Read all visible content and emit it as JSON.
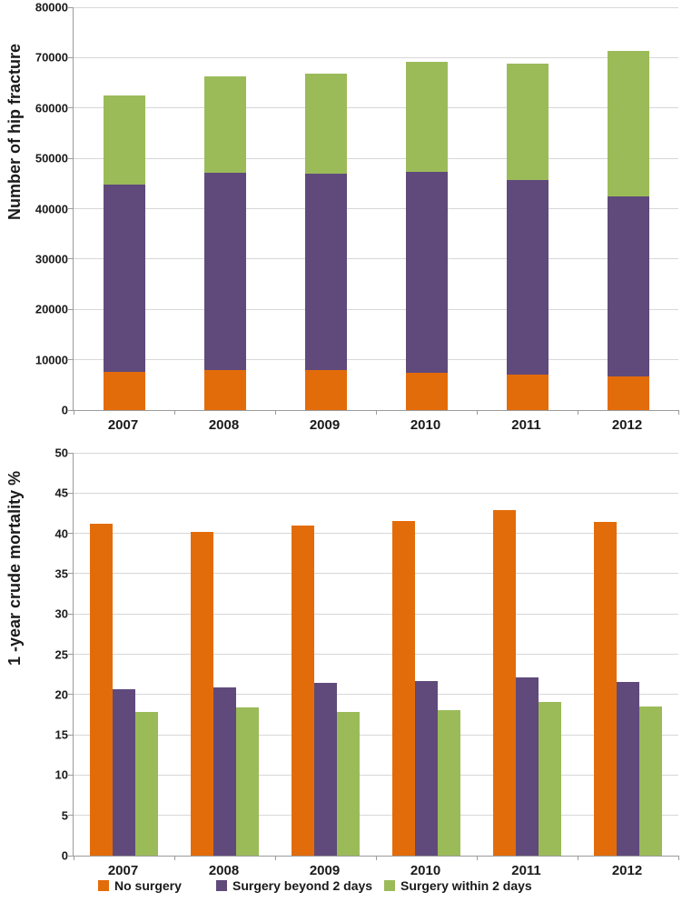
{
  "chart_data": [
    {
      "type": "bar",
      "stacked": true,
      "title": "",
      "xlabel": "",
      "ylabel": "Number of hip fracture",
      "categories": [
        "2007",
        "2008",
        "2009",
        "2010",
        "2011",
        "2012"
      ],
      "series": [
        {
          "name": "No surgery",
          "color": "#e36c0a",
          "values": [
            7600,
            7900,
            7900,
            7400,
            7000,
            6700
          ]
        },
        {
          "name": "Surgery beyond 2 days",
          "color": "#604a7b",
          "values": [
            37100,
            39300,
            39100,
            39900,
            38700,
            35700
          ]
        },
        {
          "name": "Surgery within 2 days",
          "color": "#9bbb59",
          "values": [
            17700,
            19100,
            19800,
            21900,
            23100,
            28900
          ]
        }
      ],
      "stack_totals": [
        62400,
        66300,
        66800,
        69200,
        68800,
        71300
      ],
      "ylim": [
        0,
        80000
      ],
      "yticks": [
        0,
        10000,
        20000,
        30000,
        40000,
        50000,
        60000,
        70000,
        80000
      ],
      "grid": true,
      "legend": false
    },
    {
      "type": "bar",
      "stacked": false,
      "title": "",
      "xlabel": "",
      "ylabel": "1 -year crude mortality %",
      "categories": [
        "2007",
        "2008",
        "2009",
        "2010",
        "2011",
        "2012"
      ],
      "series": [
        {
          "name": "No surgery",
          "color": "#e36c0a",
          "values": [
            41.2,
            40.2,
            41.0,
            41.5,
            42.9,
            41.4
          ]
        },
        {
          "name": "Surgery beyond 2 days",
          "color": "#604a7b",
          "values": [
            20.6,
            20.9,
            21.4,
            21.7,
            22.1,
            21.6
          ]
        },
        {
          "name": "Surgery within 2 days",
          "color": "#9bbb59",
          "values": [
            17.8,
            18.4,
            17.8,
            18.1,
            19.1,
            18.5
          ]
        }
      ],
      "ylim": [
        0,
        50
      ],
      "yticks": [
        0,
        5,
        10,
        15,
        20,
        25,
        30,
        35,
        40,
        45,
        50
      ],
      "grid": true,
      "legend": true,
      "legend_position": "bottom"
    }
  ],
  "legend": {
    "items": [
      {
        "label": "No surgery",
        "color": "#e36c0a"
      },
      {
        "label": "Surgery beyond 2 days",
        "color": "#604a7b"
      },
      {
        "label": "Surgery within 2 days",
        "color": "#9bbb59"
      }
    ]
  },
  "style": {
    "grid_color": "#d7d7d7",
    "axis_color": "#9b9b9b",
    "text_color": "#1a1a1a",
    "background": "#ffffff"
  }
}
